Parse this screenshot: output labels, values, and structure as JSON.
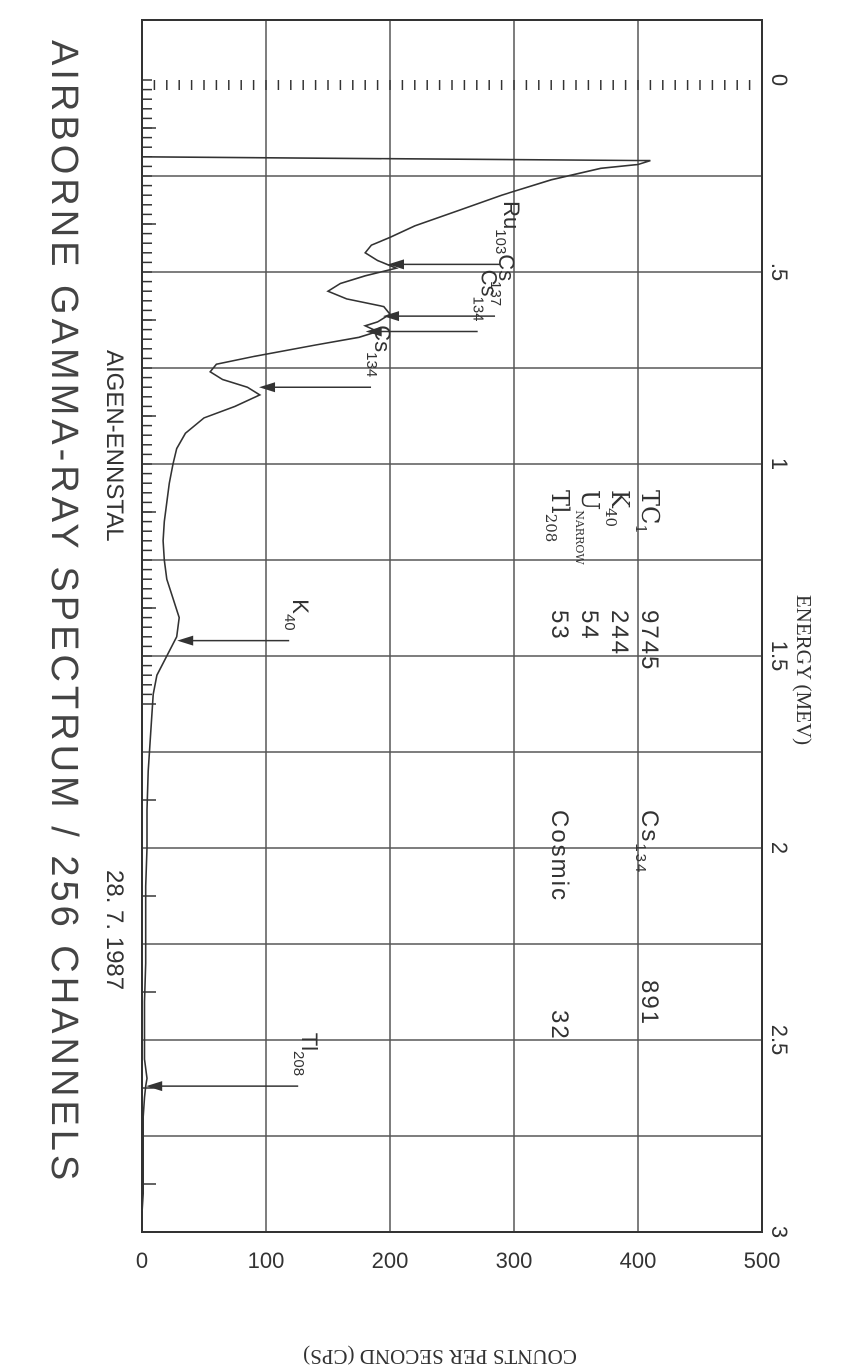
{
  "chart_data": {
    "type": "line",
    "title": "AIRBORNE GAMMA-RAY SPECTRUM / 256 CHANNELS",
    "location": "AIGEN-ENNSTAL",
    "date": "28. 7. 1987",
    "xlabel": "ENERGY (MEV)",
    "ylabel": "COUNTS PER SECOND (CPS)",
    "xlim": [
      0,
      3
    ],
    "ylim": [
      0,
      500
    ],
    "x_ticks": [
      {
        "value": 0,
        "label": "0"
      },
      {
        "value": 0.5,
        "label": ".5"
      },
      {
        "value": 1,
        "label": "1"
      },
      {
        "value": 1.5,
        "label": "1.5"
      },
      {
        "value": 2,
        "label": "2"
      },
      {
        "value": 2.5,
        "label": "2.5"
      },
      {
        "value": 3,
        "label": "3"
      }
    ],
    "y_ticks": [
      {
        "value": 0,
        "label": "0"
      },
      {
        "value": 100,
        "label": "100"
      },
      {
        "value": 200,
        "label": "200"
      },
      {
        "value": 300,
        "label": "300"
      },
      {
        "value": 400,
        "label": "400"
      },
      {
        "value": 500,
        "label": "500"
      }
    ],
    "grid": true,
    "series": [
      {
        "x": [
          0.2,
          0.205,
          0.21,
          0.22,
          0.23,
          0.26,
          0.3,
          0.34,
          0.38,
          0.41,
          0.43,
          0.45,
          0.47,
          0.49,
          0.51,
          0.53,
          0.55,
          0.57,
          0.59,
          0.61,
          0.63,
          0.64,
          0.655,
          0.67,
          0.69,
          0.72,
          0.74,
          0.76,
          0.78,
          0.8,
          0.82,
          0.85,
          0.88,
          0.92,
          0.96,
          1.0,
          1.05,
          1.1,
          1.15,
          1.2,
          1.25,
          1.3,
          1.35,
          1.4,
          1.45,
          1.5,
          1.55,
          1.6,
          1.7,
          1.8,
          1.9,
          2.0,
          2.1,
          2.2,
          2.3,
          2.4,
          2.5,
          2.55,
          2.6,
          2.62,
          2.65,
          2.7,
          2.8,
          2.9,
          2.95
        ],
        "y": [
          0,
          200,
          410,
          400,
          370,
          330,
          290,
          255,
          220,
          200,
          185,
          180,
          190,
          205,
          180,
          160,
          150,
          165,
          195,
          200,
          190,
          180,
          190,
          175,
          140,
          90,
          60,
          55,
          65,
          85,
          95,
          75,
          50,
          35,
          28,
          25,
          22,
          20,
          18,
          17,
          18,
          20,
          25,
          30,
          28,
          20,
          12,
          9,
          7,
          5,
          4,
          4,
          3,
          3,
          3,
          2,
          2,
          2,
          4,
          3,
          2,
          1,
          1,
          1,
          0
        ]
      }
    ],
    "peak_annotations": [
      {
        "isotope": "Ru",
        "mass": "103",
        "x": 0.48,
        "y": 200
      },
      {
        "isotope": "Cs",
        "mass": "137",
        "x": 0.615,
        "y": 196
      },
      {
        "isotope": "Cs",
        "mass": "134",
        "x": 0.655,
        "y": 182
      },
      {
        "isotope": "Cs",
        "mass": "134",
        "x": 0.8,
        "y": 96
      },
      {
        "isotope": "K",
        "mass": "40",
        "x": 1.46,
        "y": 30
      },
      {
        "isotope": "Tl",
        "mass": "208",
        "x": 2.62,
        "y": 5
      }
    ],
    "info_table": [
      {
        "label": "TC",
        "sub": "1",
        "value": "9745"
      },
      {
        "label": "K",
        "sub": "40",
        "value": "244"
      },
      {
        "label": "U",
        "sub": "NARROW",
        "value": "54"
      },
      {
        "label": "Tl",
        "sub": "208",
        "value": "53"
      },
      {
        "label": "Cs",
        "sub": "134",
        "value": "891"
      },
      {
        "label": "Cosmic",
        "sub": "",
        "value": "32"
      }
    ]
  }
}
